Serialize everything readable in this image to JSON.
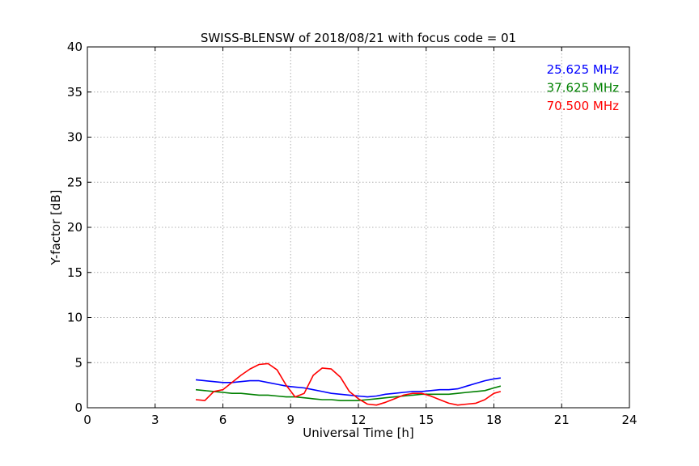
{
  "chart_data": {
    "type": "line",
    "title": "SWISS-BLENSW of 2018/08/21 with focus code = 01",
    "xlabel": "Universal Time [h]",
    "ylabel": "Y-factor [dB]",
    "xlim": [
      0,
      24
    ],
    "ylim": [
      0,
      40
    ],
    "xticks": [
      0,
      3,
      6,
      9,
      12,
      15,
      18,
      21,
      24
    ],
    "yticks": [
      0,
      5,
      10,
      15,
      20,
      25,
      30,
      35,
      40
    ],
    "grid": true,
    "legend_position": "top-right",
    "series": [
      {
        "name": "25.625 MHz",
        "color": "#0000ff",
        "x": [
          4.8,
          5.2,
          5.6,
          6.0,
          6.4,
          6.8,
          7.2,
          7.6,
          8.0,
          8.4,
          8.8,
          9.2,
          9.6,
          10.0,
          10.4,
          10.8,
          11.2,
          11.6,
          12.0,
          12.4,
          12.8,
          13.2,
          13.6,
          14.0,
          14.4,
          14.8,
          15.2,
          15.6,
          16.0,
          16.4,
          16.8,
          17.2,
          17.6,
          18.0,
          18.3
        ],
        "y": [
          3.1,
          3.0,
          2.9,
          2.8,
          2.8,
          2.9,
          3.0,
          3.0,
          2.8,
          2.6,
          2.4,
          2.3,
          2.2,
          2.0,
          1.8,
          1.6,
          1.5,
          1.4,
          1.3,
          1.2,
          1.3,
          1.5,
          1.6,
          1.7,
          1.8,
          1.8,
          1.9,
          2.0,
          2.0,
          2.1,
          2.4,
          2.7,
          3.0,
          3.2,
          3.3
        ]
      },
      {
        "name": "37.625 MHz",
        "color": "#008000",
        "x": [
          4.8,
          5.2,
          5.6,
          6.0,
          6.4,
          6.8,
          7.2,
          7.6,
          8.0,
          8.4,
          8.8,
          9.2,
          9.6,
          10.0,
          10.4,
          10.8,
          11.2,
          11.6,
          12.0,
          12.4,
          12.8,
          13.2,
          13.6,
          14.0,
          14.4,
          14.8,
          15.2,
          15.6,
          16.0,
          16.4,
          16.8,
          17.2,
          17.6,
          18.0,
          18.3
        ],
        "y": [
          2.0,
          1.9,
          1.8,
          1.7,
          1.6,
          1.6,
          1.5,
          1.4,
          1.4,
          1.3,
          1.2,
          1.2,
          1.1,
          1.0,
          0.9,
          0.9,
          0.8,
          0.8,
          0.8,
          0.9,
          1.0,
          1.1,
          1.2,
          1.3,
          1.4,
          1.5,
          1.5,
          1.5,
          1.5,
          1.6,
          1.7,
          1.8,
          1.9,
          2.2,
          2.4
        ]
      },
      {
        "name": "70.500 MHz",
        "color": "#ff0000",
        "x": [
          4.8,
          5.2,
          5.6,
          6.0,
          6.4,
          6.8,
          7.2,
          7.6,
          8.0,
          8.4,
          8.8,
          9.2,
          9.6,
          10.0,
          10.4,
          10.8,
          11.2,
          11.6,
          12.0,
          12.4,
          12.8,
          13.2,
          13.6,
          14.0,
          14.4,
          14.8,
          15.2,
          15.6,
          16.0,
          16.4,
          16.8,
          17.2,
          17.6,
          18.0,
          18.3
        ],
        "y": [
          0.9,
          0.8,
          1.8,
          2.0,
          2.8,
          3.6,
          4.3,
          4.8,
          4.9,
          4.2,
          2.5,
          1.2,
          1.6,
          3.6,
          4.4,
          4.3,
          3.4,
          1.8,
          1.0,
          0.4,
          0.3,
          0.6,
          1.0,
          1.4,
          1.6,
          1.6,
          1.3,
          0.9,
          0.5,
          0.3,
          0.4,
          0.5,
          0.9,
          1.6,
          1.8
        ]
      }
    ]
  }
}
